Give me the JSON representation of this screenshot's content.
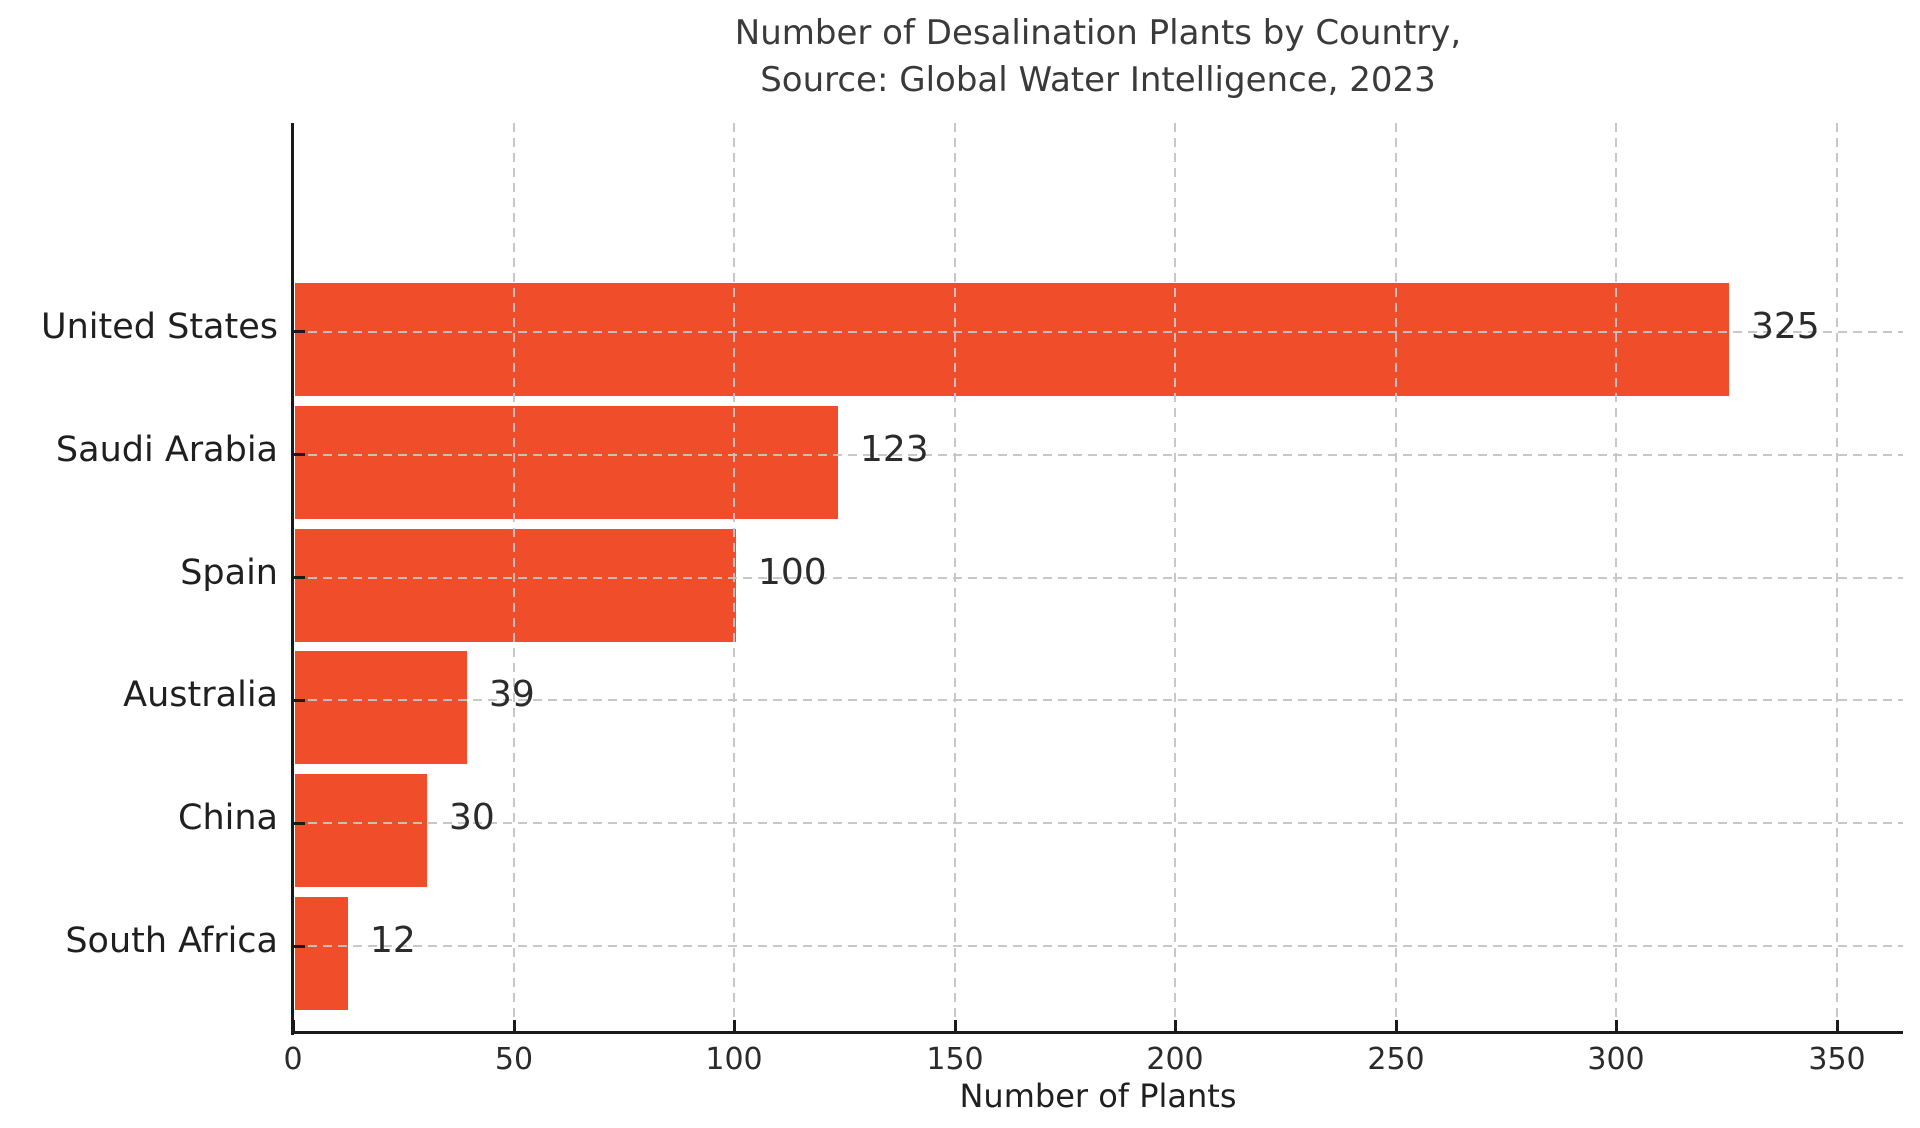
{
  "chart_data": {
    "type": "bar",
    "orientation": "horizontal",
    "title_line1": "Number of Desalination Plants by Country,",
    "title_line2": "Source: Global Water Intelligence, 2023",
    "categories": [
      "United States",
      "Saudi Arabia",
      "Spain",
      "Australia",
      "China",
      "South Africa"
    ],
    "values": [
      325,
      123,
      100,
      39,
      30,
      12
    ],
    "value_labels": [
      "325",
      "123",
      "100",
      "39",
      "30",
      "12"
    ],
    "xlabel": "Number of Plants",
    "x_ticks": [
      0,
      50,
      100,
      150,
      200,
      250,
      300,
      350
    ],
    "xlim": [
      0,
      365
    ],
    "grid": "dashed",
    "legend": "none",
    "bar_color": "#F04E2B",
    "grid_color": "#C5C5C5",
    "axis_color": "#1A1A1A",
    "text_color": "#1F1F1F",
    "title_color": "#3A3A3A",
    "background_color": "#FFFFFF"
  }
}
